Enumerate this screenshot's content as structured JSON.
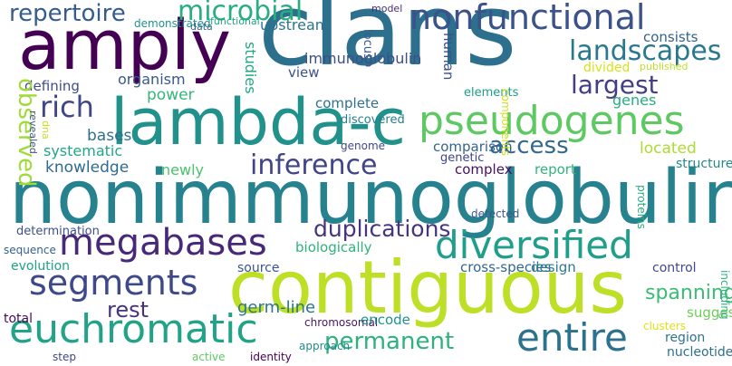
{
  "words": [
    {
      "text": "clans",
      "color": "#2d708e"
    },
    {
      "text": "nonimmunoglobulin",
      "color": "#26828e"
    },
    {
      "text": "contiguous",
      "color": "#bddf26"
    },
    {
      "text": "amply",
      "color": "#440154"
    },
    {
      "text": "lambda-c",
      "color": "#21918c"
    },
    {
      "text": "pseudogenes",
      "color": "#5ec962"
    },
    {
      "text": "nonfunctional",
      "color": "#3b528b"
    },
    {
      "text": "diversified",
      "color": "#1f9e89"
    },
    {
      "text": "megabases",
      "color": "#482878"
    },
    {
      "text": "euchromatic",
      "color": "#20a386"
    },
    {
      "text": "segments",
      "color": "#3e4989"
    },
    {
      "text": "entire",
      "color": "#2c728e"
    },
    {
      "text": "landscapes",
      "color": "#2a788e"
    },
    {
      "text": "inference",
      "color": "#414487"
    },
    {
      "text": "microbial",
      "color": "#29af7f"
    },
    {
      "text": "repertoire",
      "color": "#365c8d"
    },
    {
      "text": "rich",
      "color": "#3f4788"
    },
    {
      "text": "largest",
      "color": "#433e85"
    },
    {
      "text": "permanent",
      "color": "#2db27d"
    },
    {
      "text": "duplications",
      "color": "#453581"
    },
    {
      "text": "access",
      "color": "#31688e"
    },
    {
      "text": "rest",
      "color": "#46337f"
    },
    {
      "text": "spanning",
      "color": "#3bbb75"
    },
    {
      "text": "power",
      "color": "#35b779"
    },
    {
      "text": "organism",
      "color": "#38588c"
    },
    {
      "text": "defining",
      "color": "#3e4c8a"
    },
    {
      "text": "knowledge",
      "color": "#2f6b8e"
    },
    {
      "text": "systematic",
      "color": "#22a785"
    },
    {
      "text": "bases",
      "color": "#2e6f8e"
    },
    {
      "text": "newly",
      "color": "#4ac16d"
    },
    {
      "text": "germ-line",
      "color": "#2a768e"
    },
    {
      "text": "source",
      "color": "#3a548c"
    },
    {
      "text": "biologically",
      "color": "#2eb37c"
    },
    {
      "text": "immunoglobulin",
      "color": "#3c4f8a"
    },
    {
      "text": "view",
      "color": "#3a538b"
    },
    {
      "text": "upstream",
      "color": "#2b758e"
    },
    {
      "text": "complete",
      "color": "#2d718e"
    },
    {
      "text": "discovered",
      "color": "#277f8e"
    },
    {
      "text": "comparison",
      "color": "#33638d"
    },
    {
      "text": "genetic",
      "color": "#404588"
    },
    {
      "text": "genome",
      "color": "#3f4889"
    },
    {
      "text": "complex",
      "color": "#471063"
    },
    {
      "text": "report",
      "color": "#31b57b"
    },
    {
      "text": "located",
      "color": "#addc30"
    },
    {
      "text": "divided",
      "color": "#d8e219"
    },
    {
      "text": "published",
      "color": "#c2df23"
    },
    {
      "text": "consists",
      "color": "#33628d"
    },
    {
      "text": "genes",
      "color": "#27ad81"
    },
    {
      "text": "structures",
      "color": "#24868e"
    },
    {
      "text": "cross-species",
      "color": "#31688e"
    },
    {
      "text": "design",
      "color": "#297b8e"
    },
    {
      "text": "control",
      "color": "#3e4a89"
    },
    {
      "text": "evolution",
      "color": "#1fa188"
    },
    {
      "text": "determination",
      "color": "#3d4e8a"
    },
    {
      "text": "sequence",
      "color": "#355f8d"
    },
    {
      "text": "total",
      "color": "#460b5e"
    },
    {
      "text": "chromosomal",
      "color": "#481769"
    },
    {
      "text": "encode",
      "color": "#20928c"
    },
    {
      "text": "suggests",
      "color": "#6ece58"
    },
    {
      "text": "clusters",
      "color": "#dde318"
    },
    {
      "text": "region",
      "color": "#2c738e"
    },
    {
      "text": "nucleotide",
      "color": "#2d708e"
    },
    {
      "text": "step",
      "color": "#3f4889"
    },
    {
      "text": "active",
      "color": "#5ec962"
    },
    {
      "text": "identity",
      "color": "#440154"
    },
    {
      "text": "approach",
      "color": "#23898e"
    },
    {
      "text": "functional",
      "color": "#20a386"
    },
    {
      "text": "detected",
      "color": "#38588c"
    },
    {
      "text": "demonstrated",
      "color": "#20928c"
    },
    {
      "text": "data",
      "color": "#31688e"
    },
    {
      "text": "model",
      "color": "#472d7b"
    },
    {
      "text": "elements",
      "color": "#1e9c89"
    },
    {
      "text": "observed",
      "color": "#a0da39"
    },
    {
      "text": "studies",
      "color": "#22a884"
    },
    {
      "text": "human",
      "color": "#3b528b"
    },
    {
      "text": "locus",
      "color": "#365c8d"
    },
    {
      "text": "components",
      "color": "#d0e11c"
    },
    {
      "text": "dna",
      "color": "#c8e020"
    },
    {
      "text": "revealed",
      "color": "#39568c"
    },
    {
      "text": "proteins",
      "color": "#27ad81"
    },
    {
      "text": "including",
      "color": "#2fb47c"
    }
  ]
}
